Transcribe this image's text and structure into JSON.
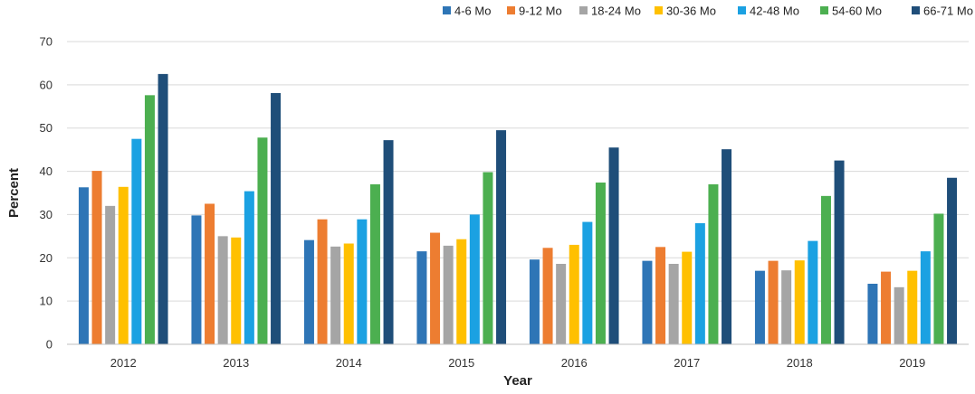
{
  "chart_data": {
    "type": "bar",
    "title": "",
    "xlabel": "Year",
    "ylabel": "Percent",
    "ylim": [
      0,
      70
    ],
    "yticks": [
      0,
      10,
      20,
      30,
      40,
      50,
      60,
      70
    ],
    "grid": true,
    "legend_position": "top-right",
    "categories": [
      "2012",
      "2013",
      "2014",
      "2015",
      "2016",
      "2017",
      "2018",
      "2019"
    ],
    "series": [
      {
        "name": "4-6 Mo",
        "color": "#2e75b6",
        "values": [
          36.3,
          29.8,
          24.1,
          21.5,
          19.6,
          19.3,
          17.0,
          14.0
        ]
      },
      {
        "name": "9-12 Mo",
        "color": "#ed7d31",
        "values": [
          40.1,
          32.5,
          28.9,
          25.8,
          22.3,
          22.5,
          19.3,
          16.8
        ]
      },
      {
        "name": "18-24 Mo",
        "color": "#a5a5a5",
        "values": [
          32.0,
          25.0,
          22.6,
          22.8,
          18.6,
          18.6,
          17.1,
          13.2
        ]
      },
      {
        "name": "30-36 Mo",
        "color": "#ffc000",
        "values": [
          36.4,
          24.7,
          23.3,
          24.3,
          23.0,
          21.4,
          19.4,
          17.0
        ]
      },
      {
        "name": "42-48 Mo",
        "color": "#1ba1e2",
        "values": [
          47.5,
          35.4,
          28.9,
          30.0,
          28.3,
          28.0,
          23.9,
          21.5
        ]
      },
      {
        "name": "54-60 Mo",
        "color": "#4caf50",
        "values": [
          57.6,
          47.8,
          37.0,
          39.8,
          37.4,
          37.0,
          34.3,
          30.2
        ]
      },
      {
        "name": "66-71 Mo",
        "color": "#1f4e79",
        "values": [
          62.5,
          58.1,
          47.2,
          49.5,
          45.5,
          45.1,
          42.5,
          38.5
        ]
      }
    ]
  }
}
